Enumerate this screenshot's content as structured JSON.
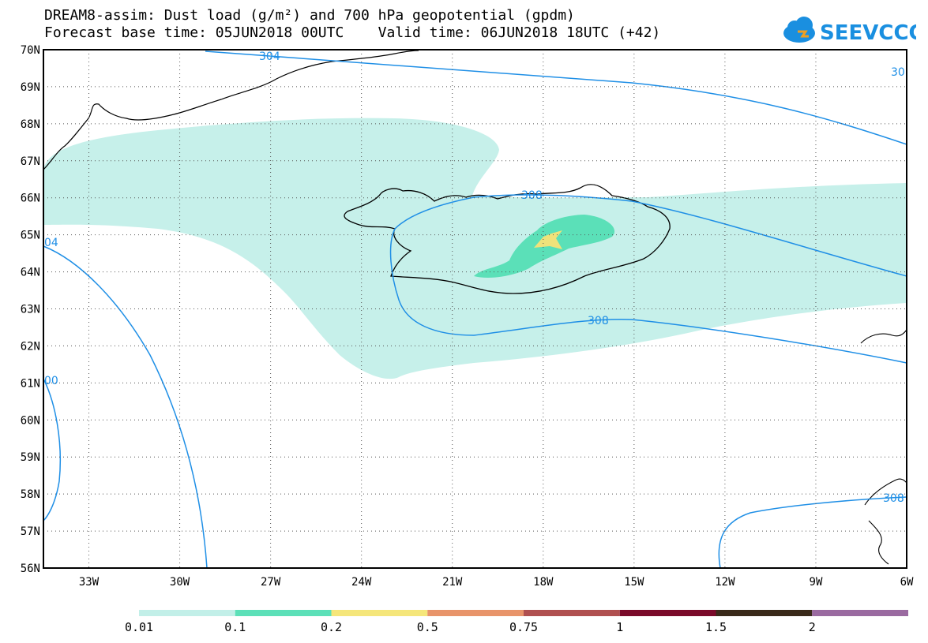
{
  "title": {
    "line1": "DREAM8-assim: Dust load (g/m²) and 700 hPa geopotential (gpdm)",
    "line2": "Forecast base time: 05JUN2018 00UTC    Valid time: 06JUN2018 18UTC (+42)"
  },
  "logo": {
    "text": "SEEVCCC",
    "icon": "cloud-icon",
    "color": "#1a8fe0"
  },
  "axes": {
    "lat_labels": [
      "70N",
      "69N",
      "68N",
      "67N",
      "66N",
      "65N",
      "64N",
      "63N",
      "62N",
      "61N",
      "60N",
      "59N",
      "58N",
      "57N",
      "56N"
    ],
    "lon_labels": [
      "33W",
      "30W",
      "27W",
      "24W",
      "21W",
      "18W",
      "15W",
      "12W",
      "9W",
      "6W"
    ],
    "lat_range": [
      56,
      70
    ],
    "lon_range": [
      -34.5,
      -6
    ]
  },
  "contour_labels": [
    "304",
    "308",
    "308",
    "04",
    "00",
    "308",
    "30"
  ],
  "legend": {
    "labels": [
      "0.01",
      "0.1",
      "0.2",
      "0.5",
      "0.75",
      "1",
      "1.5",
      "2"
    ],
    "colors": [
      "#c2efe8",
      "#5ce0b8",
      "#f5e67a",
      "#e8946a",
      "#b05050",
      "#7a0a2a",
      "#3a2a1a",
      "#9a6aa0"
    ]
  },
  "colors": {
    "contour": "#1f8fe6",
    "dust_low": "#c6f0ea",
    "dust_mid": "#5be0b8",
    "dust_high": "#f0e27a"
  }
}
